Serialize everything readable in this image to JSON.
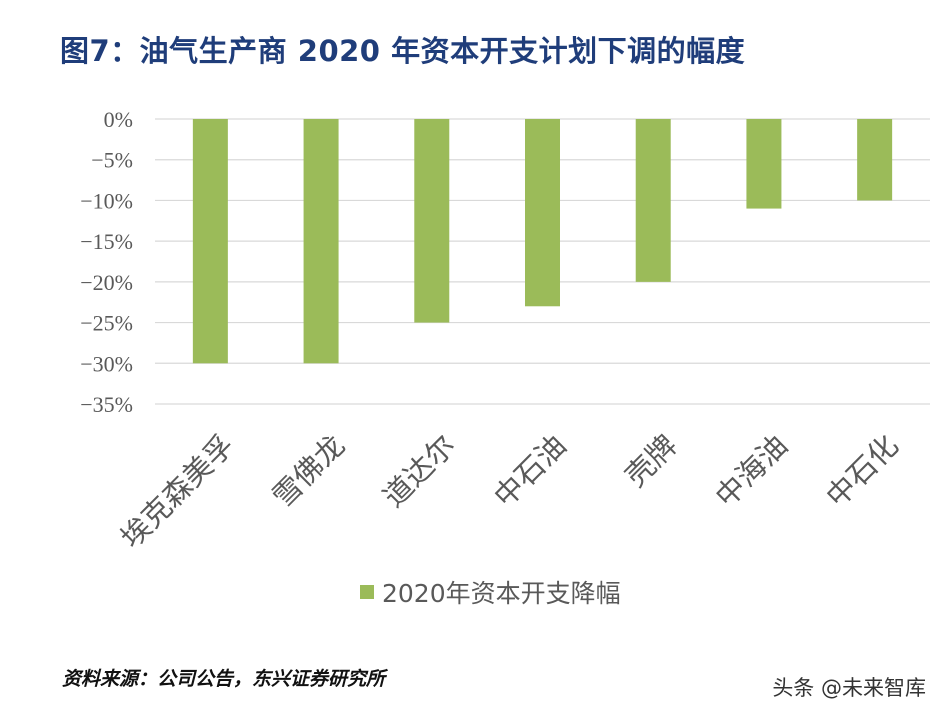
{
  "title": "图7：油气生产商 2020 年资本开支计划下调的幅度",
  "source": "资料来源：公司公告，东兴证券研究所",
  "watermark": "头条 @未来智库",
  "colors": {
    "bar": "#9bbb59",
    "grid": "#d9d9d9",
    "title": "#1f3d7a",
    "axis_text": "#595959"
  },
  "chart_data": {
    "type": "bar",
    "categories": [
      "埃克森美孚",
      "雪佛龙",
      "道达尔",
      "中石油",
      "壳牌",
      "中海油",
      "中石化"
    ],
    "series": [
      {
        "name": "2020年资本开支降幅",
        "values": [
          -30,
          -30,
          -25,
          -23,
          -20,
          -11,
          -10
        ]
      }
    ],
    "ylim": [
      -35,
      0
    ],
    "yticks": [
      0,
      -5,
      -10,
      -15,
      -20,
      -25,
      -30,
      -35
    ],
    "ytick_labels": [
      "0%",
      "−5%",
      "−10%",
      "−15%",
      "−20%",
      "−25%",
      "−30%",
      "−35%"
    ],
    "grid": true,
    "legend_position": "bottom"
  }
}
